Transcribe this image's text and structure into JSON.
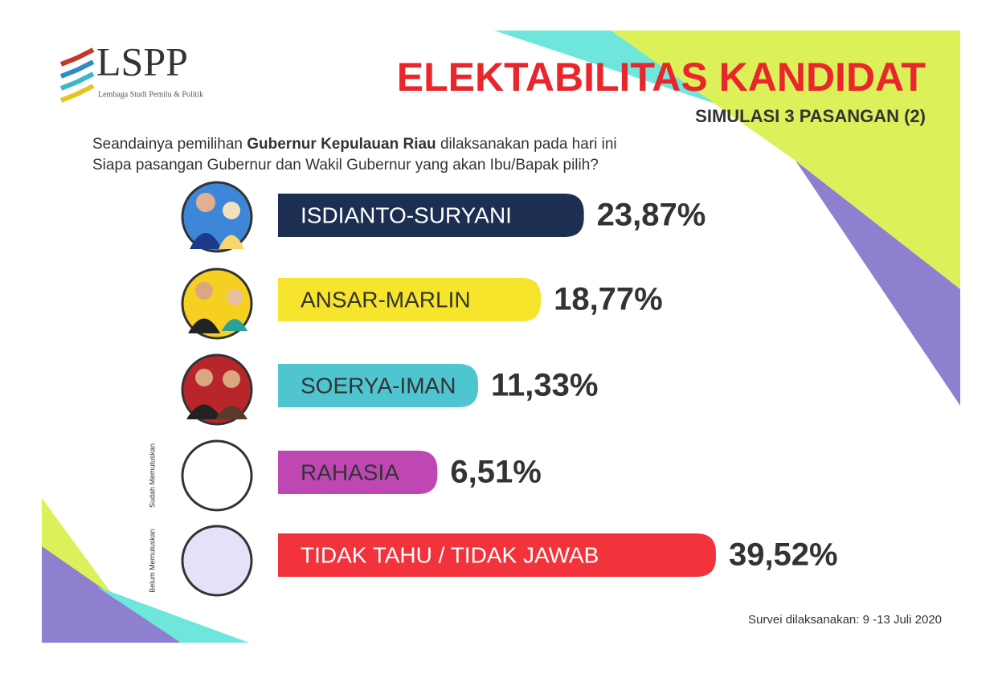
{
  "logo": {
    "name": "LSPP",
    "tagline": "Lembaga Studi Pemilu & Politik"
  },
  "question": {
    "line1": [
      "Seandainya pemilihan ",
      "Gubernur Kepulauan Riau",
      " dilaksanakan pada hari ini"
    ],
    "line2": "Siapa pasangan Gubernur dan Wakil Gubernur yang akan Ibu/Bapak pilih?"
  },
  "chart_data": {
    "type": "bar",
    "orientation": "horizontal",
    "title": "ELEKTABILITAS KANDIDAT",
    "subtitle": "SIMULASI 3 PASANGAN (2)",
    "categories": [
      "ISDIANTO-SURYANI",
      "ANSAR-MARLIN",
      "SOERYA-IMAN",
      "RAHASIA",
      "TIDAK TAHU / TIDAK JAWAB"
    ],
    "values": [
      23.87,
      18.77,
      11.33,
      6.51,
      39.52
    ],
    "value_labels": [
      "23,87%",
      "18,77%",
      "11,33%",
      "6,51%",
      "39,52%"
    ],
    "colors": [
      "#1c2f52",
      "#f7e52b",
      "#4fc6cf",
      "#be47b4",
      "#f2333b"
    ],
    "label_colors": [
      "#ffffff",
      "#333333",
      "#333333",
      "#333333",
      "#ffffff"
    ],
    "group_labels": [
      "Sudah Memutuskan",
      "Belum Memutuskan"
    ]
  },
  "footnote": "Survei dilaksanakan: 9 -13 Juli 2020"
}
